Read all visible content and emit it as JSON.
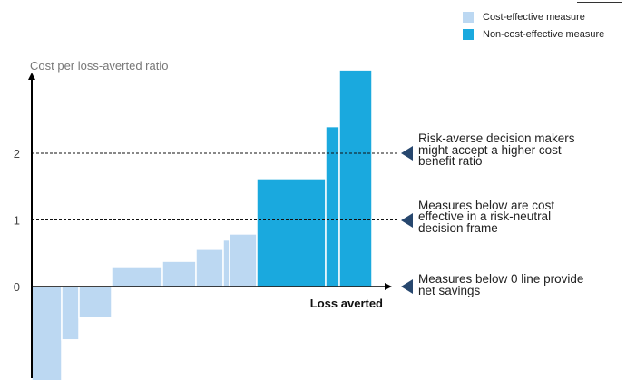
{
  "legend": {
    "items": [
      {
        "label": "Cost-effective measure",
        "color": "#bcd8f2"
      },
      {
        "label": "Non-cost-effective measure",
        "color": "#1aa9de"
      }
    ]
  },
  "annotations": [
    {
      "text": "Risk-averse decision makers\nmight accept a higher cost\nbenefit ratio",
      "y": 2
    },
    {
      "text": "Measures below are cost\neffective in a risk-neutral\ndecision frame",
      "y": 1
    },
    {
      "text": "Measures below 0 line provide\nnet savings",
      "y": 0
    }
  ],
  "chart_data": {
    "type": "bar",
    "ylabel": "Cost per loss-averted ratio",
    "xlabel": "Loss averted",
    "ylim": [
      -1.45,
      3.3
    ],
    "yticks": [
      {
        "value": 2,
        "label": "2"
      },
      {
        "value": 1,
        "label": "1"
      },
      {
        "value": 0,
        "label": "0"
      }
    ],
    "reference_lines": [
      1,
      2
    ],
    "bars": [
      {
        "width": 33,
        "value": -1.43,
        "class": "cost-effective"
      },
      {
        "width": 19,
        "value": -0.8,
        "class": "cost-effective"
      },
      {
        "width": 36,
        "value": -0.47,
        "class": "cost-effective"
      },
      {
        "width": 56,
        "value": 0.3,
        "class": "cost-effective"
      },
      {
        "width": 37,
        "value": 0.38,
        "class": "cost-effective"
      },
      {
        "width": 30,
        "value": 0.56,
        "class": "cost-effective"
      },
      {
        "width": 7,
        "value": 0.7,
        "class": "cost-effective"
      },
      {
        "width": 30,
        "value": 0.79,
        "class": "cost-effective"
      },
      {
        "width": 76,
        "value": 1.62,
        "class": "non-cost-effective"
      },
      {
        "width": 15,
        "value": 2.4,
        "class": "non-cost-effective"
      },
      {
        "width": 36,
        "value": 3.25,
        "class": "non-cost-effective"
      }
    ]
  }
}
